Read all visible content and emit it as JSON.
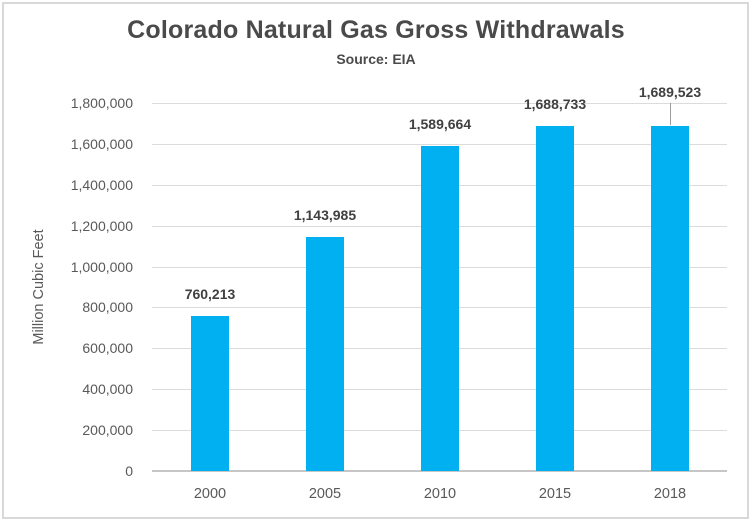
{
  "frame": {
    "background": "#FFFFFF",
    "border_color": "#D8D8D8"
  },
  "chart_data": {
    "type": "bar",
    "title": "Colorado Natural Gas Gross Withdrawals",
    "subtitle": "Source: EIA",
    "xlabel": "",
    "ylabel": "Million Cubic Feet",
    "categories": [
      "2000",
      "2005",
      "2010",
      "2015",
      "2018"
    ],
    "values": [
      760213,
      1143985,
      1589664,
      1688733,
      1689523
    ],
    "data_labels": [
      "760,213",
      "1,143,985",
      "1,589,664",
      "1,688,733",
      "1,689,523"
    ],
    "ylim": [
      0,
      1800000
    ],
    "ytick_interval": 200000,
    "ytick_labels": [
      "0",
      "200,000",
      "400,000",
      "600,000",
      "800,000",
      "1,000,000",
      "1,200,000",
      "1,400,000",
      "1,600,000",
      "1,800,000"
    ],
    "grid": true,
    "legend": "none",
    "raised_label_index": 4,
    "colors": {
      "bar": "#00B0F0",
      "gridline": "#DBDBDB",
      "axis_line": "#C6C6C6",
      "axis_text": "#595959",
      "title_text": "#4A4A4A",
      "data_label_text": "#404040",
      "leader_line": "#9E9E9E"
    }
  }
}
